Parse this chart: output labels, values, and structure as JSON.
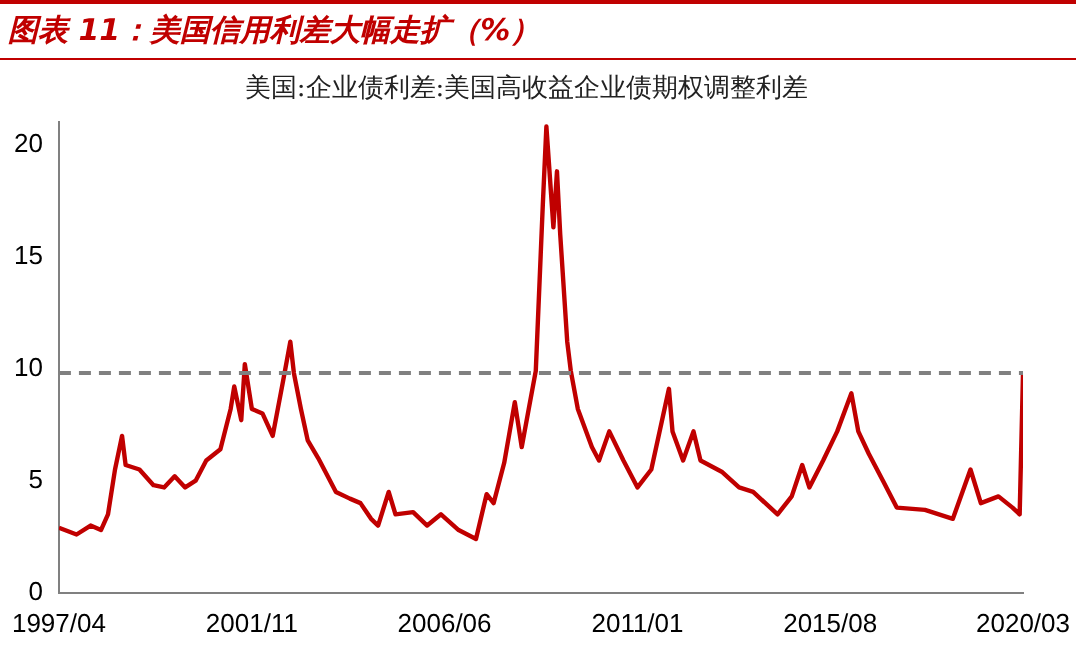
{
  "chart_data": {
    "type": "line",
    "title": "图表 11：美国信用利差大幅走扩（%）",
    "x": [
      "1997-04",
      "1997-09",
      "1998-01",
      "1998-04",
      "1998-06",
      "1998-08",
      "1998-10",
      "1998-11",
      "1999-03",
      "1999-07",
      "1999-10",
      "2000-01",
      "2000-04",
      "2000-07",
      "2000-10",
      "2001-02",
      "2001-05",
      "2001-06",
      "2001-08",
      "2001-09",
      "2001-11",
      "2002-02",
      "2002-05",
      "2002-08",
      "2002-10",
      "2002-11",
      "2003-01",
      "2003-03",
      "2003-06",
      "2003-11",
      "2004-03",
      "2004-06",
      "2004-09",
      "2004-11",
      "2005-02",
      "2005-04",
      "2005-09",
      "2006-01",
      "2006-05",
      "2006-10",
      "2007-03",
      "2007-06",
      "2007-08",
      "2007-11",
      "2008-02",
      "2008-04",
      "2008-06",
      "2008-08",
      "2008-10",
      "2008-11",
      "2009-01",
      "2009-02",
      "2009-03",
      "2009-05",
      "2009-06",
      "2009-08",
      "2009-12",
      "2010-02",
      "2010-05",
      "2010-09",
      "2011-01",
      "2011-05",
      "2011-10",
      "2011-11",
      "2012-02",
      "2012-05",
      "2012-07",
      "2013-01",
      "2013-06",
      "2013-10",
      "2014-05",
      "2014-09",
      "2014-12",
      "2015-02",
      "2015-06",
      "2015-10",
      "2016-02",
      "2016-04",
      "2016-07",
      "2016-11",
      "2017-03",
      "2017-11",
      "2018-07",
      "2018-12",
      "2019-03",
      "2019-08",
      "2019-12",
      "2020-02",
      "2020-03"
    ],
    "series": [
      {
        "name": "美国:企业债利差:美国高收益企业债期权调整利差",
        "color": "#c00000",
        "values": [
          2.9,
          2.6,
          3.0,
          2.8,
          3.5,
          5.5,
          7.0,
          5.7,
          5.5,
          4.8,
          4.7,
          5.2,
          4.7,
          5.0,
          5.9,
          6.4,
          8.2,
          9.2,
          7.7,
          10.2,
          8.2,
          8.0,
          7.0,
          9.5,
          11.2,
          9.8,
          8.2,
          6.8,
          6.0,
          4.5,
          4.2,
          4.0,
          3.3,
          3.0,
          4.5,
          3.5,
          3.6,
          3.0,
          3.5,
          2.8,
          2.4,
          4.4,
          4.0,
          5.8,
          8.5,
          6.5,
          8.2,
          9.9,
          17.3,
          20.8,
          16.3,
          18.8,
          16.0,
          11.2,
          9.9,
          8.2,
          6.5,
          5.9,
          7.2,
          5.9,
          4.7,
          5.5,
          9.1,
          7.2,
          5.9,
          7.2,
          5.9,
          5.4,
          4.7,
          4.5,
          3.5,
          4.3,
          5.7,
          4.7,
          5.9,
          7.2,
          8.9,
          7.2,
          6.2,
          5.0,
          3.8,
          3.7,
          3.3,
          5.5,
          4.0,
          4.3,
          3.8,
          3.5,
          9.8
        ]
      }
    ],
    "xlim": [
      "1997-04",
      "2020-03"
    ],
    "xticks": [
      {
        "value": "1997-04",
        "label": "1997/04"
      },
      {
        "value": "2001-11",
        "label": "2001/11"
      },
      {
        "value": "2006-06",
        "label": "2006/06"
      },
      {
        "value": "2011-01",
        "label": "2011/01"
      },
      {
        "value": "2015-08",
        "label": "2015/08"
      },
      {
        "value": "2020-03",
        "label": "2020/03"
      }
    ],
    "ylim": [
      0,
      21
    ],
    "yticks": [
      0,
      5,
      10,
      15,
      20
    ],
    "ref_lines": [
      {
        "axis": "y",
        "value": 9.8,
        "color": "#808080",
        "line_style": "dashed"
      }
    ],
    "legend": "top",
    "grid": false,
    "marker": "none",
    "line_style": "solid"
  }
}
